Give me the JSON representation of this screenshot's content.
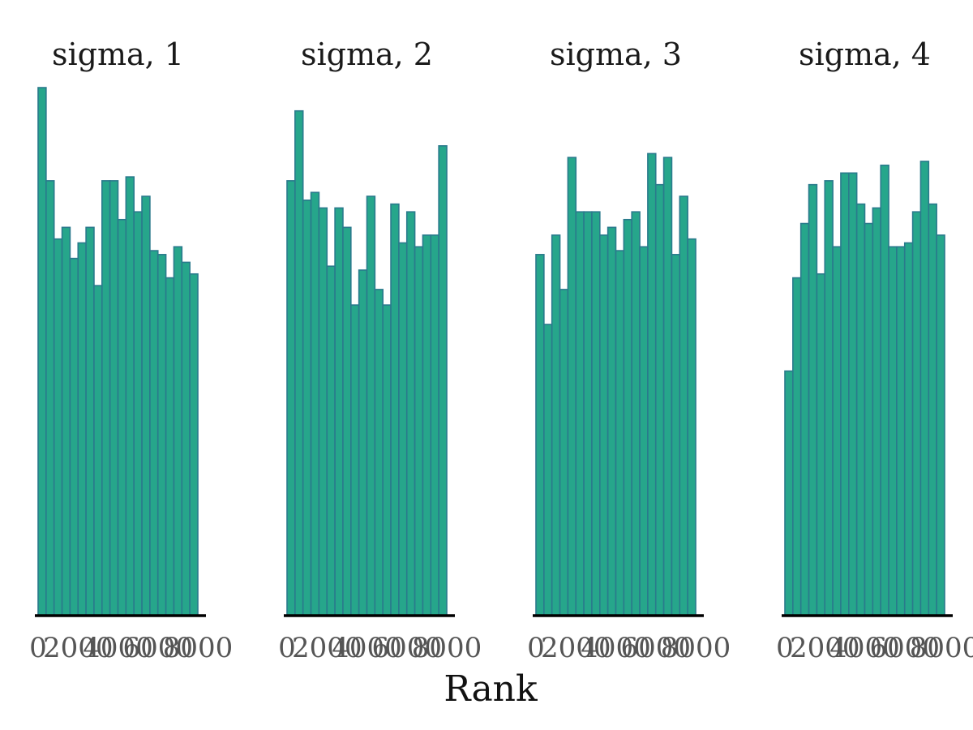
{
  "chart_data": {
    "type": "bar",
    "xlabel": "Rank",
    "bar_color": "#26a68b",
    "bar_edge_color": "#2a7a8c",
    "ylim": [
      0,
      136
    ],
    "panels": [
      {
        "title": "sigma, 1",
        "xlim": [
          0,
          8000
        ],
        "tick_labels": [
          "0",
          "2000",
          "4000",
          "6000",
          "8000"
        ],
        "values": [
          136,
          112,
          97,
          100,
          92,
          96,
          100,
          85,
          112,
          112,
          102,
          113,
          104,
          108,
          94,
          93,
          87,
          95,
          91,
          88
        ]
      },
      {
        "title": "sigma, 2",
        "xlim": [
          0,
          8000
        ],
        "tick_labels": [
          "0",
          "2000",
          "4000",
          "6000",
          "8000"
        ],
        "values": [
          112,
          130,
          107,
          109,
          105,
          90,
          105,
          100,
          80,
          89,
          108,
          84,
          80,
          106,
          96,
          104,
          95,
          98,
          98,
          121
        ]
      },
      {
        "title": "sigma, 3",
        "xlim": [
          0,
          8000
        ],
        "tick_labels": [
          "0",
          "2000",
          "4000",
          "6000",
          "8000"
        ],
        "values": [
          93,
          75,
          98,
          84,
          118,
          104,
          104,
          104,
          98,
          100,
          94,
          102,
          104,
          95,
          119,
          111,
          118,
          93,
          108,
          97
        ]
      },
      {
        "title": "sigma, 4",
        "xlim": [
          0,
          8000
        ],
        "tick_labels": [
          "0",
          "2000",
          "4000",
          "6000",
          "8000"
        ],
        "values": [
          63,
          87,
          101,
          111,
          88,
          112,
          95,
          114,
          114,
          106,
          101,
          105,
          116,
          95,
          95,
          96,
          104,
          117,
          106,
          98
        ]
      }
    ]
  }
}
